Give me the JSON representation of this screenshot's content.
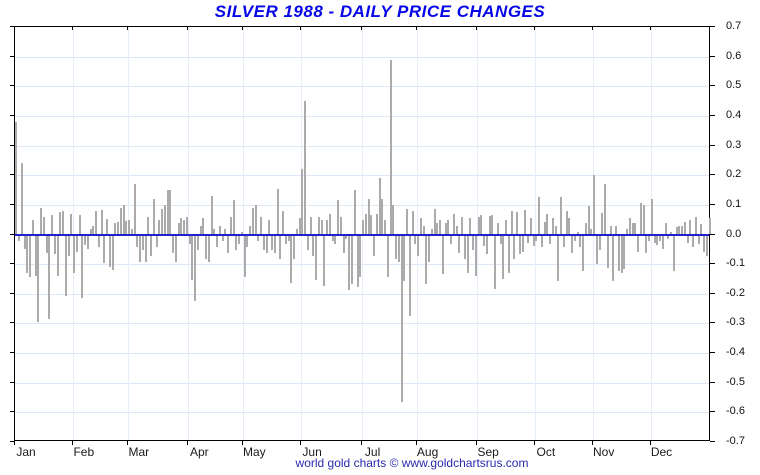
{
  "title": "SILVER 1988 - DAILY PRICE CHANGES",
  "footer": {
    "credit": "world gold charts © www.goldchartsrus.com"
  },
  "colors": {
    "title": "#0606e8",
    "credit": "#2a2ab0",
    "bar": "#ababab",
    "zero_line": "#2121cc",
    "hgrid": "#dce8f5",
    "vgrid": "#e4eef8",
    "axis": "#000000",
    "tick_label": "#111111"
  },
  "chart_data": {
    "type": "bar",
    "title": "SILVER 1988 - DAILY PRICE CHANGES",
    "xlabel": "",
    "ylabel": "",
    "ylim": [
      -0.7,
      0.7
    ],
    "ytick_step": 0.1,
    "yticklabels": [
      "0.7",
      "0.6",
      "0.5",
      "0.4",
      "0.3",
      "0.2",
      "0.1",
      "0.0",
      "-0.1",
      "-0.2",
      "-0.3",
      "-0.4",
      "-0.5",
      "-0.6",
      "-0.7"
    ],
    "grid": true,
    "legend_position": "none",
    "categories": [
      "Jan",
      "Feb",
      "Mar",
      "Apr",
      "May",
      "Jun",
      "Jul",
      "Aug",
      "Sep",
      "Oct",
      "Nov",
      "Dec"
    ],
    "month_start_index": [
      0,
      21,
      41,
      63,
      83,
      104,
      126,
      146,
      168,
      189,
      210,
      231
    ],
    "values": [
      0.38,
      -0.02,
      0.24,
      -0.046,
      -0.125,
      -0.14,
      0.05,
      -0.135,
      -0.29,
      0.09,
      0.06,
      -0.06,
      -0.28,
      0.065,
      -0.063,
      -0.136,
      0.075,
      0.08,
      -0.204,
      -0.069,
      0.07,
      -0.125,
      -0.057,
      0.065,
      -0.21,
      -0.033,
      -0.044,
      0.02,
      0.03,
      0.08,
      -0.04,
      0.083,
      -0.093,
      0.053,
      -0.105,
      -0.117,
      0.038,
      0.044,
      0.09,
      0.1,
      0.045,
      0.05,
      0.02,
      0.17,
      -0.04,
      -0.09,
      -0.05,
      -0.09,
      0.06,
      -0.07,
      0.12,
      -0.04,
      0.05,
      0.085,
      0.1,
      0.15,
      0.15,
      -0.06,
      -0.09,
      0.04,
      0.055,
      0.05,
      0.06,
      -0.03,
      -0.15,
      -0.22,
      -0.05,
      0.03,
      0.055,
      -0.08,
      -0.09,
      0.13,
      0.02,
      -0.04,
      0.03,
      -0.02,
      0.02,
      -0.06,
      0.06,
      0.115,
      -0.05,
      -0.03,
      0.01,
      -0.14,
      -0.04,
      0.03,
      0.09,
      0.1,
      -0.02,
      0.06,
      -0.05,
      -0.06,
      0.05,
      -0.05,
      -0.06,
      0.155,
      -0.08,
      0.08,
      -0.03,
      -0.02,
      -0.16,
      -0.08,
      0.02,
      0.055,
      0.22,
      0.45,
      -0.05,
      0.06,
      -0.07,
      -0.15,
      0.06,
      0.05,
      -0.17,
      0.05,
      0.07,
      -0.02,
      -0.03,
      0.115,
      0.06,
      -0.06,
      -0.01,
      -0.185,
      -0.165,
      0.15,
      -0.175,
      -0.14,
      0.05,
      0.07,
      0.12,
      0.065,
      -0.07,
      0.07,
      0.19,
      0.12,
      0.05,
      -0.14,
      0.59,
      0.1,
      -0.08,
      -0.09,
      -0.56,
      -0.155,
      0.085,
      -0.27,
      0.08,
      -0.03,
      -0.07,
      0.055,
      0.03,
      -0.165,
      -0.09,
      0.02,
      0.085,
      0.04,
      0.05,
      -0.13,
      0.04,
      0.05,
      -0.03,
      0.07,
      0.03,
      -0.06,
      0.06,
      -0.08,
      -0.125,
      0.055,
      -0.05,
      -0.136,
      0.06,
      0.066,
      -0.035,
      -0.063,
      0.064,
      0.066,
      -0.18,
      0.038,
      -0.03,
      -0.147,
      0.05,
      -0.125,
      0.078,
      -0.08,
      0.075,
      -0.063,
      -0.057,
      0.083,
      -0.024,
      0.057,
      -0.035,
      -0.02,
      0.128,
      -0.04,
      0.044,
      0.07,
      -0.03,
      0.055,
      0.03,
      -0.155,
      0.125,
      -0.04,
      0.08,
      0.055,
      -0.06,
      -0.02,
      0.01,
      -0.04,
      -0.12,
      0.04,
      0.095,
      0.02,
      0.2,
      -0.097,
      -0.05,
      0.072,
      0.17,
      -0.11,
      0.03,
      -0.153,
      0.028,
      -0.12,
      -0.125,
      -0.113,
      0.02,
      0.055,
      0.04,
      0.038,
      -0.055,
      0.105,
      0.1,
      -0.06,
      -0.02,
      0.12,
      -0.024,
      -0.033,
      -0.02,
      -0.046,
      0.038,
      -0.01,
      0.01,
      -0.12,
      0.025,
      0.03,
      0.03,
      0.042,
      -0.025,
      0.05,
      -0.04,
      0.06,
      -0.03,
      0.035,
      -0.057,
      -0.068,
      0.055
    ]
  }
}
